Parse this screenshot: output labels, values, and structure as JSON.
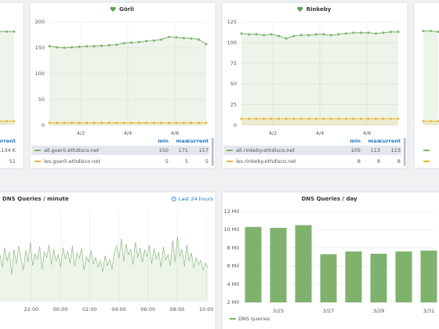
{
  "chart_data": [
    {
      "type": "line",
      "xlim": [
        0,
        2
      ],
      "ylim": [
        0,
        1250
      ],
      "points": true,
      "legend_columns": [
        "current"
      ],
      "series": [
        {
          "color": "#7eb26d",
          "values": [
            1134,
            1134,
            1134
          ],
          "current": {
            "value": 1134,
            "label": "1.134 K"
          }
        },
        {
          "color": "#eab839",
          "values": [
            51,
            51,
            51
          ],
          "current": 51
        }
      ]
    },
    {
      "type": "line",
      "title": "Görli",
      "xlim": [
        0,
        21
      ],
      "ylim": [
        0,
        200
      ],
      "yticks": [
        0,
        50,
        100,
        150,
        200
      ],
      "xticks": [
        {
          "value": 4.2,
          "label": "4/2"
        },
        {
          "value": 10.5,
          "label": "4/4"
        },
        {
          "value": 16.8,
          "label": "4/6"
        }
      ],
      "grid": true,
      "points": true,
      "legend_columns": [
        "min",
        "max",
        "current"
      ],
      "series": [
        {
          "name": "all.goerli.ethdisco.net",
          "color": "#7eb26d",
          "values": [
            153,
            151,
            150,
            151,
            152,
            153,
            153,
            154,
            155,
            156,
            159,
            160,
            161,
            163,
            164,
            166,
            171,
            170,
            169,
            168,
            166,
            157
          ],
          "min": 150,
          "max": 171,
          "current": 157
        },
        {
          "name": "les.goerli.ethdisco.net",
          "color": "#eab839",
          "values": [
            5,
            5,
            5,
            5,
            5,
            5,
            5,
            5,
            5,
            5,
            5,
            5,
            5,
            5,
            5,
            5,
            5,
            5,
            5,
            5,
            5,
            5
          ],
          "min": 5,
          "max": 5,
          "current": 5
        }
      ]
    },
    {
      "type": "line",
      "title": "Rinkeby",
      "xlim": [
        0,
        21
      ],
      "ylim": [
        0,
        125
      ],
      "yticks": [
        0,
        25,
        50,
        75,
        100,
        125
      ],
      "xticks": [
        {
          "value": 4.2,
          "label": "4/2"
        },
        {
          "value": 10.5,
          "label": "4/4"
        },
        {
          "value": 16.8,
          "label": "4/6"
        }
      ],
      "grid": true,
      "points": true,
      "legend_columns": [
        "min",
        "max",
        "current"
      ],
      "series": [
        {
          "name": "all.rinkeby.ethdisco.net",
          "color": "#7eb26d",
          "values": [
            111,
            110,
            110,
            109,
            110,
            108,
            105,
            108,
            109,
            109,
            110,
            110,
            109,
            110,
            111,
            112,
            112,
            112,
            111,
            112,
            113,
            113
          ],
          "min": 105,
          "max": 113,
          "current": 113
        },
        {
          "name": "les.rinkeby.ethdisco.net",
          "color": "#eab839",
          "values": [
            8,
            8,
            8,
            8,
            8,
            8,
            8,
            8,
            8,
            8,
            8,
            8,
            8,
            8,
            8,
            8,
            8,
            8,
            8,
            8,
            8,
            8
          ],
          "min": 8,
          "max": 8,
          "current": 8
        }
      ]
    },
    {
      "type": "line",
      "xlim": [
        0,
        2
      ],
      "ylim": [
        0,
        125
      ],
      "points": true,
      "series": [
        {
          "color": "#7eb26d",
          "values": [
            114,
            114,
            113
          ]
        },
        {
          "color": "#eab839",
          "values": [
            5,
            5,
            5
          ]
        }
      ]
    },
    {
      "type": "line",
      "title": "DNS Queries / minute",
      "time_range": "Last 24 hours",
      "xlim": [
        0,
        89
      ],
      "ylim": [
        0,
        100
      ],
      "grid": true,
      "xticks": [
        {
          "value": 13.4,
          "label": "22:00"
        },
        {
          "value": 25.9,
          "label": "00:00"
        },
        {
          "value": 38.4,
          "label": "02:00"
        },
        {
          "value": 50.9,
          "label": "04:00"
        },
        {
          "value": 63.4,
          "label": "06:00"
        },
        {
          "value": 75.9,
          "label": "08:00"
        },
        {
          "value": 88.4,
          "label": "10:00"
        }
      ],
      "series": [
        {
          "color": "#7eb26d",
          "values": [
            52,
            38,
            60,
            45,
            55,
            30,
            58,
            42,
            62,
            48,
            35,
            57,
            44,
            66,
            40,
            53,
            47,
            61,
            36,
            55,
            49,
            63,
            41,
            58,
            45,
            52,
            38,
            60,
            47,
            56,
            43,
            62,
            39,
            54,
            48,
            59,
            35,
            50,
            44,
            57,
            42,
            49,
            38,
            46,
            33,
            51,
            40,
            47,
            36,
            55,
            62,
            48,
            70,
            45,
            64,
            52,
            58,
            41,
            66,
            49,
            60,
            44,
            57,
            50,
            63,
            42,
            59,
            47,
            55,
            38,
            61,
            46,
            52,
            40,
            68,
            44,
            72,
            50,
            58,
            39,
            63,
            45,
            54,
            37,
            49,
            41,
            46,
            35,
            43,
            38
          ]
        }
      ]
    },
    {
      "type": "bar",
      "title": "DNS Queries / day",
      "grid": true,
      "categories": [
        null,
        "3/25",
        null,
        "3/27",
        null,
        "3/29",
        null,
        "3/31"
      ],
      "ylim": [
        2000000,
        12000000
      ],
      "yticks": [
        {
          "value": 2000000,
          "label": "2 Mil"
        },
        {
          "value": 4000000,
          "label": "4 Mil"
        },
        {
          "value": 6000000,
          "label": "6 Mil"
        },
        {
          "value": 8000000,
          "label": "8 Mil"
        },
        {
          "value": 10000000,
          "label": "10 Mil"
        },
        {
          "value": 12000000,
          "label": "12 Mil"
        }
      ],
      "series": [
        {
          "name": "DNS queries",
          "color": "#7eb26d",
          "values": [
            10300000,
            10200000,
            10500000,
            7300000,
            7600000,
            7350000,
            7600000,
            7700000
          ]
        }
      ]
    }
  ]
}
